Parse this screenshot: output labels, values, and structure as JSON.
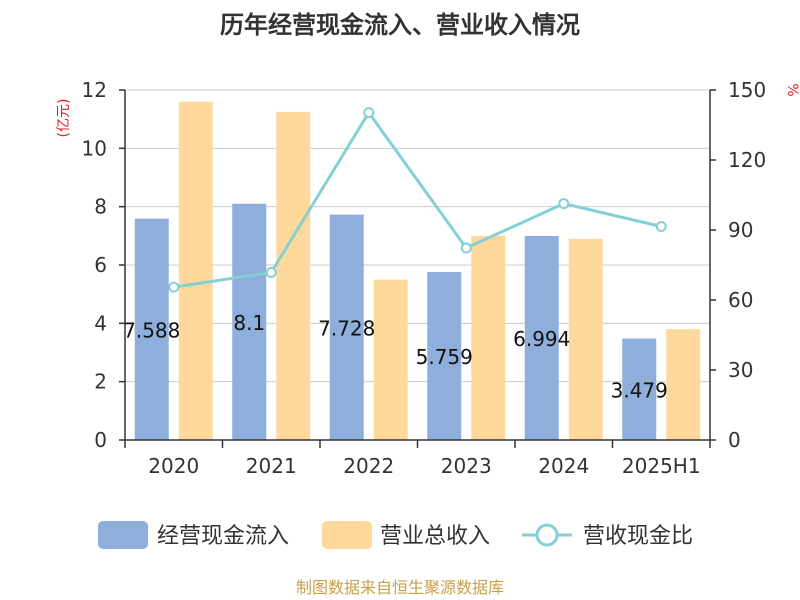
{
  "chart_data": {
    "type": "bar",
    "title": "历年经营现金流入、营业收入情况",
    "categories": [
      "2020",
      "2021",
      "2022",
      "2023",
      "2024",
      "2025H1"
    ],
    "y_left": {
      "label": "(亿元)",
      "range": [
        0,
        12
      ],
      "ticks": [
        0,
        2,
        4,
        6,
        8,
        10,
        12
      ]
    },
    "y_right": {
      "label": "%",
      "range": [
        0,
        150
      ],
      "ticks": [
        0,
        30,
        60,
        90,
        120,
        150
      ]
    },
    "series": [
      {
        "name": "经营现金流入",
        "type": "bar",
        "axis": "left",
        "color": "#8eaedb",
        "values": [
          7.588,
          8.1,
          7.728,
          5.759,
          6.994,
          3.479
        ],
        "labels": [
          "7.588",
          "8.1",
          "7.728",
          "5.759",
          "6.994",
          "3.479"
        ]
      },
      {
        "name": "营业总收入",
        "type": "bar",
        "axis": "left",
        "color": "#fed99b",
        "values": [
          11.6,
          11.25,
          5.5,
          7.0,
          6.9,
          3.8
        ]
      },
      {
        "name": "营收现金比",
        "type": "line",
        "axis": "right",
        "color": "#85d0d6",
        "values": [
          65.5,
          71.8,
          140.3,
          82.3,
          101.3,
          91.5
        ]
      }
    ],
    "grid": true,
    "legend_position": "bottom"
  },
  "source_note": "制图数据来自恒生聚源数据库"
}
